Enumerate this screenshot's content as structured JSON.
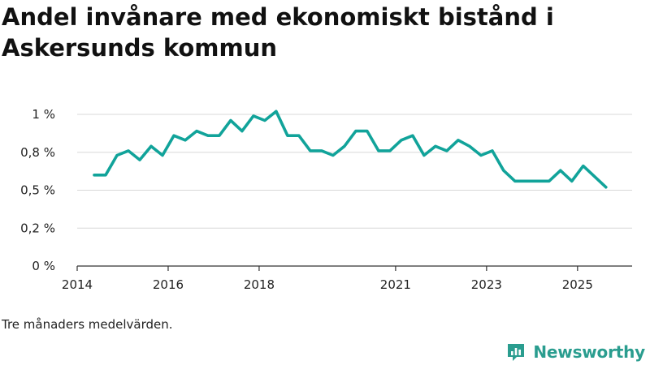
{
  "chart_data": {
    "type": "line",
    "title": "Andel invånare med ekonomiskt bistånd i Askersunds kommun",
    "subtitle": "",
    "xlabel": "",
    "ylabel": "",
    "xlim": [
      2014.0,
      2026.2
    ],
    "ylim": [
      0,
      1.0
    ],
    "y_ticks": [
      {
        "value": 0,
        "label": "0 %"
      },
      {
        "value": 0.25,
        "label": "0,2 %"
      },
      {
        "value": 0.5,
        "label": "0,5 %"
      },
      {
        "value": 0.75,
        "label": "0,8 %"
      },
      {
        "value": 1.0,
        "label": "1 %"
      }
    ],
    "x_ticks": [
      {
        "value": 2014.0,
        "label": "2014"
      },
      {
        "value": 2016.0,
        "label": "2016"
      },
      {
        "value": 2018.0,
        "label": "2018"
      },
      {
        "value": 2021.0,
        "label": "2021"
      },
      {
        "value": 2023.0,
        "label": "2023"
      },
      {
        "value": 2025.0,
        "label": "2025"
      }
    ],
    "grid": true,
    "series": [
      {
        "name": "Andel invånare med ekonomiskt bistånd",
        "color": "#11a39a",
        "x": [
          2014.375,
          2014.625,
          2014.875,
          2015.125,
          2015.375,
          2015.625,
          2015.875,
          2016.125,
          2016.375,
          2016.625,
          2016.875,
          2017.125,
          2017.375,
          2017.625,
          2017.875,
          2018.125,
          2018.375,
          2018.625,
          2018.875,
          2019.125,
          2019.375,
          2019.625,
          2019.875,
          2020.125,
          2020.375,
          2020.625,
          2020.875,
          2021.125,
          2021.375,
          2021.625,
          2021.875,
          2022.125,
          2022.375,
          2022.625,
          2022.875,
          2023.125,
          2023.375,
          2023.625,
          2023.875,
          2024.125,
          2024.375,
          2024.625,
          2024.875,
          2025.125,
          2025.375,
          2025.625
        ],
        "values": [
          0.6,
          0.6,
          0.73,
          0.76,
          0.7,
          0.79,
          0.73,
          0.86,
          0.83,
          0.89,
          0.86,
          0.86,
          0.96,
          0.89,
          0.99,
          0.96,
          1.02,
          0.86,
          0.86,
          0.76,
          0.76,
          0.73,
          0.79,
          0.89,
          0.89,
          0.76,
          0.76,
          0.83,
          0.86,
          0.73,
          0.79,
          0.76,
          0.83,
          0.79,
          0.73,
          0.76,
          0.63,
          0.56,
          0.56,
          0.56,
          0.56,
          0.63,
          0.56,
          0.66,
          0.59,
          0.52
        ]
      }
    ]
  },
  "footer": {
    "note": "Tre månaders medelvärden.",
    "brand": "Newsworthy"
  },
  "colors": {
    "line": "#11a39a",
    "brand": "#2a9d8f",
    "grid": "#d8d8d8"
  }
}
